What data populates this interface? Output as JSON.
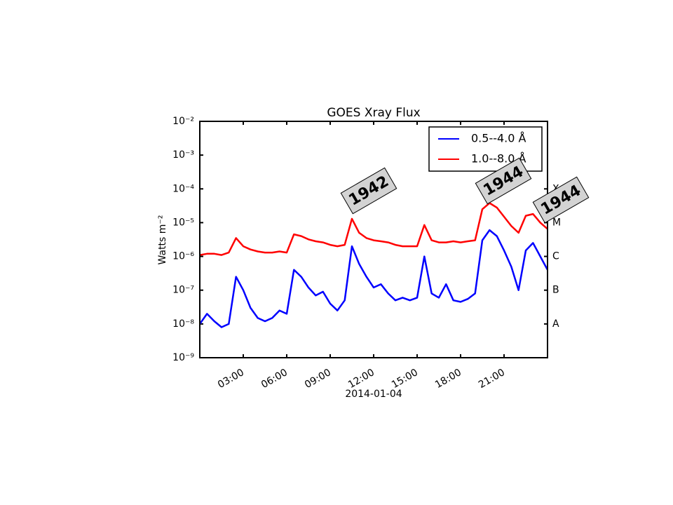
{
  "chart_data": {
    "type": "line",
    "title": "GOES Xray Flux",
    "xlabel": "2014-01-04",
    "ylabel": "Watts m⁻²",
    "x": [
      0,
      0.5,
      1,
      1.5,
      2,
      2.5,
      3,
      3.5,
      4,
      4.5,
      5,
      5.5,
      6,
      6.5,
      7,
      7.5,
      8,
      8.5,
      9,
      9.5,
      10,
      10.5,
      11,
      11.5,
      12,
      12.5,
      13,
      13.5,
      14,
      14.5,
      15,
      15.5,
      16,
      16.5,
      17,
      17.5,
      18,
      18.5,
      19,
      19.5,
      20,
      20.5,
      21,
      21.5,
      22,
      22.5,
      23,
      23.5,
      24
    ],
    "series": [
      {
        "name": "0.5--4.0 Å",
        "color": "#0000ff",
        "values": [
          1e-08,
          2e-08,
          1.2e-08,
          8e-09,
          1e-08,
          2.5e-07,
          1e-07,
          3e-08,
          1.5e-08,
          1.2e-08,
          1.5e-08,
          2.5e-08,
          2e-08,
          4e-07,
          2.5e-07,
          1.2e-07,
          7e-08,
          9e-08,
          4e-08,
          2.5e-08,
          5e-08,
          2e-06,
          6e-07,
          2.5e-07,
          1.2e-07,
          1.5e-07,
          8e-08,
          5e-08,
          6e-08,
          5e-08,
          6e-08,
          1e-06,
          8e-08,
          6e-08,
          1.5e-07,
          5e-08,
          4.5e-08,
          5.5e-08,
          8e-08,
          3e-06,
          6e-06,
          4e-06,
          1.5e-06,
          5e-07,
          1e-07,
          1.5e-06,
          2.5e-06,
          1e-06,
          4e-07
        ]
      },
      {
        "name": "1.0--8.0 Å",
        "color": "#ff0000",
        "values": [
          1.1e-06,
          1.2e-06,
          1.2e-06,
          1.1e-06,
          1.3e-06,
          3.5e-06,
          2e-06,
          1.6e-06,
          1.4e-06,
          1.3e-06,
          1.3e-06,
          1.4e-06,
          1.3e-06,
          4.5e-06,
          4e-06,
          3.2e-06,
          2.8e-06,
          2.6e-06,
          2.2e-06,
          2e-06,
          2.2e-06,
          1.3e-05,
          5e-06,
          3.5e-06,
          3e-06,
          2.8e-06,
          2.6e-06,
          2.2e-06,
          2e-06,
          2e-06,
          2e-06,
          8.5e-06,
          3e-06,
          2.6e-06,
          2.6e-06,
          2.8e-06,
          2.6e-06,
          2.8e-06,
          3e-06,
          2.5e-05,
          3.8e-05,
          2.8e-05,
          1.5e-05,
          8e-06,
          5e-06,
          1.6e-05,
          1.8e-05,
          1e-05,
          6.5e-06
        ]
      }
    ],
    "xlim": [
      0,
      24
    ],
    "xticks": [
      {
        "value": 3,
        "label": "03:00"
      },
      {
        "value": 6,
        "label": "06:00"
      },
      {
        "value": 9,
        "label": "09:00"
      },
      {
        "value": 12,
        "label": "12:00"
      },
      {
        "value": 15,
        "label": "15:00"
      },
      {
        "value": 18,
        "label": "18:00"
      },
      {
        "value": 21,
        "label": "21:00"
      }
    ],
    "ylim": [
      1e-09,
      0.01
    ],
    "log_y": true,
    "yticks": [
      {
        "value": 1e-09,
        "label": "10⁻⁹"
      },
      {
        "value": 1e-08,
        "label": "10⁻⁸"
      },
      {
        "value": 1e-07,
        "label": "10⁻⁷"
      },
      {
        "value": 1e-06,
        "label": "10⁻⁶"
      },
      {
        "value": 1e-05,
        "label": "10⁻⁵"
      },
      {
        "value": 0.0001,
        "label": "10⁻⁴"
      },
      {
        "value": 0.001,
        "label": "10⁻³"
      },
      {
        "value": 0.01,
        "label": "10⁻²"
      }
    ],
    "y2lim": [
      1e-09,
      0.01
    ],
    "y2ticks": [
      {
        "value": 1e-08,
        "label": "A"
      },
      {
        "value": 1e-07,
        "label": "B"
      },
      {
        "value": 1e-06,
        "label": "C"
      },
      {
        "value": 1e-05,
        "label": "M"
      },
      {
        "value": 0.0001,
        "label": "X"
      }
    ],
    "legend": "upper right",
    "annotations": [
      "1942",
      "1944",
      "1944"
    ]
  }
}
